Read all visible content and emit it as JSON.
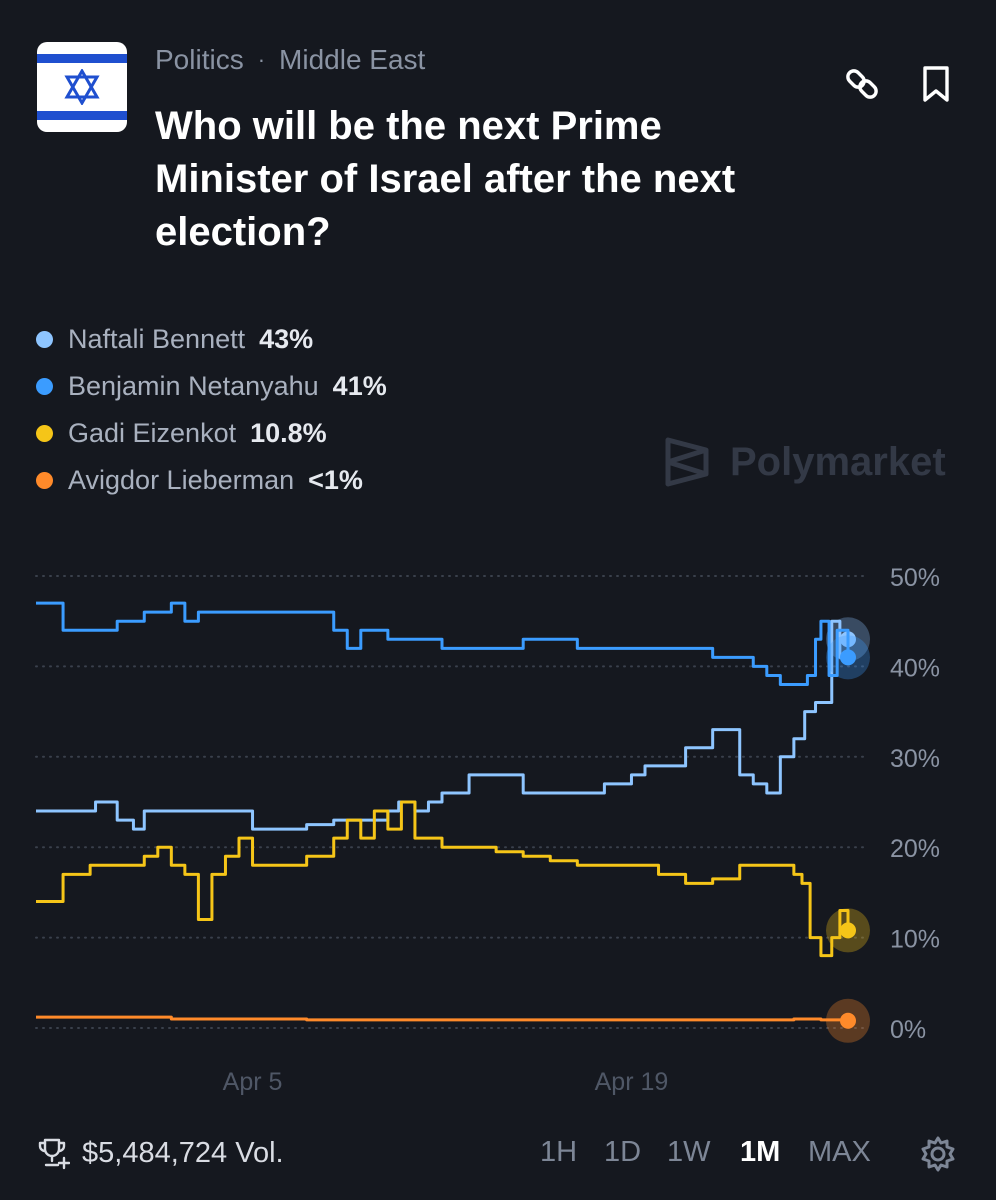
{
  "header": {
    "category": "Politics",
    "subcategory": "Middle East",
    "title": "Who will be the next Prime Minister of Israel after the next election?",
    "icons": [
      "israel-flag-icon",
      "link-icon",
      "bookmark-icon"
    ]
  },
  "legend": [
    {
      "name": "Naftali Bennett",
      "pct": "43%",
      "color": "#8ec5ff"
    },
    {
      "name": "Benjamin Netanyahu",
      "pct": "41%",
      "color": "#3b9cff"
    },
    {
      "name": "Gadi Eizenkot",
      "pct": "10.8%",
      "color": "#f5c518"
    },
    {
      "name": "Avigdor Lieberman",
      "pct": "<1%",
      "color": "#ff8a2a"
    }
  ],
  "watermark": "Polymarket",
  "chart_data": {
    "type": "line",
    "x_ticks": [
      "Apr 5",
      "Apr 19"
    ],
    "y_ticks": [
      "50%",
      "40%",
      "30%",
      "20%",
      "10%",
      "0%"
    ],
    "ylim": [
      0,
      50
    ],
    "grid": true,
    "x_range": [
      0,
      30
    ],
    "x_tick_positions": [
      8,
      22
    ],
    "series": [
      {
        "name": "Naftali Bennett",
        "color": "#8ec5ff",
        "x": [
          0,
          1,
          2,
          2.2,
          3,
          3.3,
          3.6,
          4,
          5,
          6,
          8,
          9,
          10,
          11,
          12,
          13,
          13.4,
          14,
          14.5,
          15,
          16,
          17,
          18,
          19,
          20,
          21,
          22,
          22.5,
          23,
          24,
          25,
          26,
          26.5,
          27,
          27.5,
          28,
          28.4,
          28.8,
          29,
          29.4,
          29.7,
          30
        ],
        "y": [
          24,
          24,
          24,
          25,
          23,
          23,
          22,
          24,
          24,
          24,
          22,
          22,
          22.5,
          23,
          23,
          24,
          25,
          24,
          25,
          26,
          28,
          28,
          26,
          26,
          26,
          27,
          28,
          29,
          29,
          31,
          33,
          28,
          27,
          26,
          30,
          32,
          35,
          36,
          36,
          45,
          41,
          43
        ]
      },
      {
        "name": "Benjamin Netanyahu",
        "color": "#3b9cff",
        "x": [
          0,
          0.6,
          1,
          2,
          3,
          4,
          5,
          5.5,
          6,
          7,
          8,
          9,
          10,
          11,
          11.5,
          12,
          13,
          14,
          15,
          16,
          17,
          18,
          19,
          20,
          21,
          22,
          23,
          24,
          25,
          26,
          26.5,
          27,
          27.5,
          28,
          28.5,
          28.8,
          29,
          29.3,
          29.6,
          30
        ],
        "y": [
          47,
          47,
          44,
          44,
          45,
          46,
          47,
          45,
          46,
          46,
          46,
          46,
          46,
          44,
          42,
          44,
          43,
          43,
          42,
          42,
          42,
          43,
          43,
          42,
          42,
          42,
          42,
          42,
          41,
          41,
          40,
          39,
          38,
          38,
          39,
          43,
          45,
          39,
          44,
          41
        ]
      },
      {
        "name": "Gadi Eizenkot",
        "color": "#f5c518",
        "x": [
          0,
          0.6,
          1,
          2,
          3,
          4,
          4.5,
          5,
          5.5,
          6,
          6.5,
          7,
          7.5,
          8,
          9,
          10,
          11,
          11.5,
          12,
          12.5,
          13,
          13.5,
          14,
          15,
          16,
          17,
          18,
          19,
          20,
          21,
          22,
          23,
          24,
          25,
          26,
          27,
          28,
          28.3,
          28.6,
          29,
          29.4,
          29.7,
          30
        ],
        "y": [
          14,
          14,
          17,
          18,
          18,
          19,
          20,
          18,
          17,
          12,
          17,
          19,
          21,
          18,
          18,
          19,
          21,
          23,
          21,
          24,
          22,
          25,
          21,
          20,
          20,
          19.5,
          19,
          18.5,
          18,
          18,
          18,
          17,
          16,
          16.5,
          18,
          18,
          17,
          16,
          10,
          8,
          10,
          13,
          10.8
        ]
      },
      {
        "name": "Avigdor Lieberman",
        "color": "#ff8a2a",
        "x": [
          0,
          5,
          10,
          15,
          20,
          25,
          28,
          29,
          30
        ],
        "y": [
          1.2,
          1.0,
          0.9,
          0.9,
          0.9,
          0.9,
          1.0,
          0.9,
          0.8
        ]
      }
    ]
  },
  "footer": {
    "volume": "$5,484,724 Vol.",
    "ranges": [
      {
        "label": "1H",
        "active": false
      },
      {
        "label": "1D",
        "active": false
      },
      {
        "label": "1W",
        "active": false
      },
      {
        "label": "1M",
        "active": true
      },
      {
        "label": "MAX",
        "active": false
      }
    ]
  }
}
